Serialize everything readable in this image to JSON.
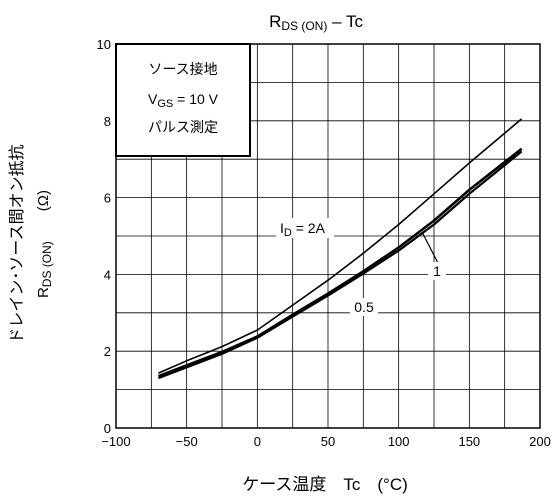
{
  "chart_data": {
    "type": "line",
    "title_main": "R",
    "title_sub": "DS (ON)",
    "title_rest": " – Tc",
    "xlabel": "ケース温度　Tc　(°C)",
    "ylabel_line1": "ドレイン･ソース間オン抵抗",
    "ylabel_line2_main": "R",
    "ylabel_line2_sub": "DS (ON)",
    "ylabel_line2_unit": "(Ω)",
    "xlim": [
      -100,
      200
    ],
    "ylim": [
      0,
      10
    ],
    "x_ticks": [
      -100,
      -50,
      0,
      50,
      100,
      150,
      200
    ],
    "x_tick_labels": [
      "−100",
      "−50",
      "0",
      "50",
      "100",
      "150",
      "200"
    ],
    "y_ticks": [
      0,
      2,
      4,
      6,
      8,
      10
    ],
    "x_grid_step": 25,
    "y_grid_step": 1,
    "grid": true,
    "conditions_box": {
      "line1": "ソース接地",
      "line2_main": "V",
      "line2_sub": "GS",
      "line2_rest": " = 10 V",
      "line3": "パルス測定"
    },
    "series": [
      {
        "name": "I_D = 2A",
        "label_main": "I",
        "label_sub": "D",
        "label_rest": " = 2A",
        "x": [
          -70,
          -50,
          -25,
          0,
          25,
          50,
          75,
          100,
          125,
          150,
          187
        ],
        "y": [
          1.43,
          1.75,
          2.12,
          2.55,
          3.2,
          3.85,
          4.55,
          5.3,
          6.1,
          6.9,
          8.05
        ]
      },
      {
        "name": "1",
        "label": "1",
        "x": [
          -70,
          -50,
          -25,
          0,
          25,
          50,
          75,
          100,
          125,
          150,
          187
        ],
        "y": [
          1.35,
          1.63,
          1.98,
          2.38,
          2.95,
          3.5,
          4.08,
          4.7,
          5.4,
          6.2,
          7.27
        ]
      },
      {
        "name": "0.5",
        "label": "0.5",
        "x": [
          -70,
          -50,
          -25,
          0,
          25,
          50,
          75,
          100,
          125,
          150,
          187
        ],
        "y": [
          1.3,
          1.58,
          1.93,
          2.35,
          2.9,
          3.45,
          4.02,
          4.62,
          5.3,
          6.1,
          7.2
        ]
      }
    ]
  }
}
